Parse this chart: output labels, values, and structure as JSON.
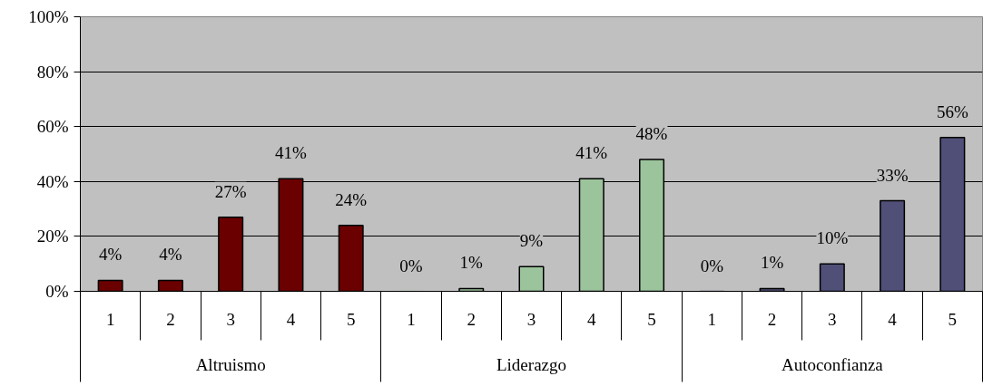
{
  "chart_data": {
    "type": "bar",
    "categories": [
      "Altruismo",
      "Liderazgo",
      "Autoconfianza"
    ],
    "series": [
      {
        "name": "1",
        "colors": [
          "#6b0000",
          "#9cc49c",
          "#4f4f78"
        ],
        "values": [
          4,
          0,
          0
        ],
        "value_labels": [
          "4%",
          "0%",
          "0%"
        ]
      },
      {
        "name": "2",
        "colors": [
          "#6b0000",
          "#9cc49c",
          "#4f4f78"
        ],
        "values": [
          4,
          1,
          1
        ],
        "value_labels": [
          "4%",
          "1%",
          "1%"
        ]
      },
      {
        "name": "3",
        "colors": [
          "#6b0000",
          "#9cc49c",
          "#4f4f78"
        ],
        "values": [
          27,
          9,
          10
        ],
        "value_labels": [
          "27%",
          "9%",
          "10%"
        ]
      },
      {
        "name": "4",
        "colors": [
          "#6b0000",
          "#9cc49c",
          "#4f4f78"
        ],
        "values": [
          41,
          41,
          33
        ],
        "value_labels": [
          "41%",
          "41%",
          "33%"
        ]
      },
      {
        "name": "5",
        "colors": [
          "#6b0000",
          "#9cc49c",
          "#4f4f78"
        ],
        "values": [
          24,
          48,
          56
        ],
        "value_labels": [
          "24%",
          "48%",
          "56%"
        ]
      }
    ],
    "ylim": [
      0,
      100
    ],
    "yticks": [
      {
        "value": 0,
        "label": "0%"
      },
      {
        "value": 20,
        "label": "20%"
      },
      {
        "value": 40,
        "label": "40%"
      },
      {
        "value": 60,
        "label": "60%"
      },
      {
        "value": 80,
        "label": "80%"
      },
      {
        "value": 100,
        "label": "100%"
      }
    ],
    "grid": "y"
  }
}
